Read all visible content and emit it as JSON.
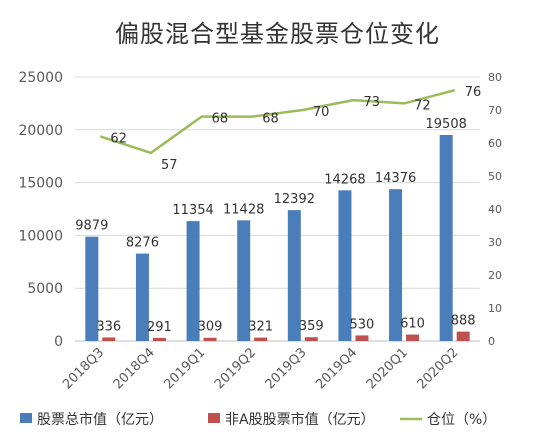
{
  "chart_data": {
    "type": "bar",
    "title": "偏股混合型基金股票仓位变化",
    "categories": [
      "2018Q3",
      "2018Q4",
      "2019Q1",
      "2019Q2",
      "2019Q3",
      "2019Q4",
      "2020Q1",
      "2020Q2"
    ],
    "series": [
      {
        "name": "股票总市值（亿元）",
        "type": "bar",
        "axis": "left",
        "color": "#4a7ebb",
        "values": [
          9879,
          8276,
          11354,
          11428,
          12392,
          14268,
          14376,
          19508
        ]
      },
      {
        "name": "非A股股票市值（亿元）",
        "type": "bar",
        "axis": "left",
        "color": "#c0504d",
        "values": [
          336,
          291,
          309,
          321,
          359,
          530,
          610,
          888
        ]
      },
      {
        "name": "仓位（%）",
        "type": "line",
        "axis": "right",
        "color": "#9bbb59",
        "values": [
          62,
          57,
          68,
          68,
          70,
          73,
          72,
          76
        ]
      }
    ],
    "y_left": {
      "ylim": [
        0,
        25000
      ],
      "ticks": [
        "0",
        "5000",
        "10000",
        "15000",
        "20000",
        "25000"
      ]
    },
    "y_right": {
      "ylim": [
        0,
        80
      ],
      "ticks": [
        "0",
        "10",
        "20",
        "30",
        "40",
        "50",
        "60",
        "70",
        "80"
      ]
    },
    "grid": true,
    "legend_position": "bottom"
  }
}
